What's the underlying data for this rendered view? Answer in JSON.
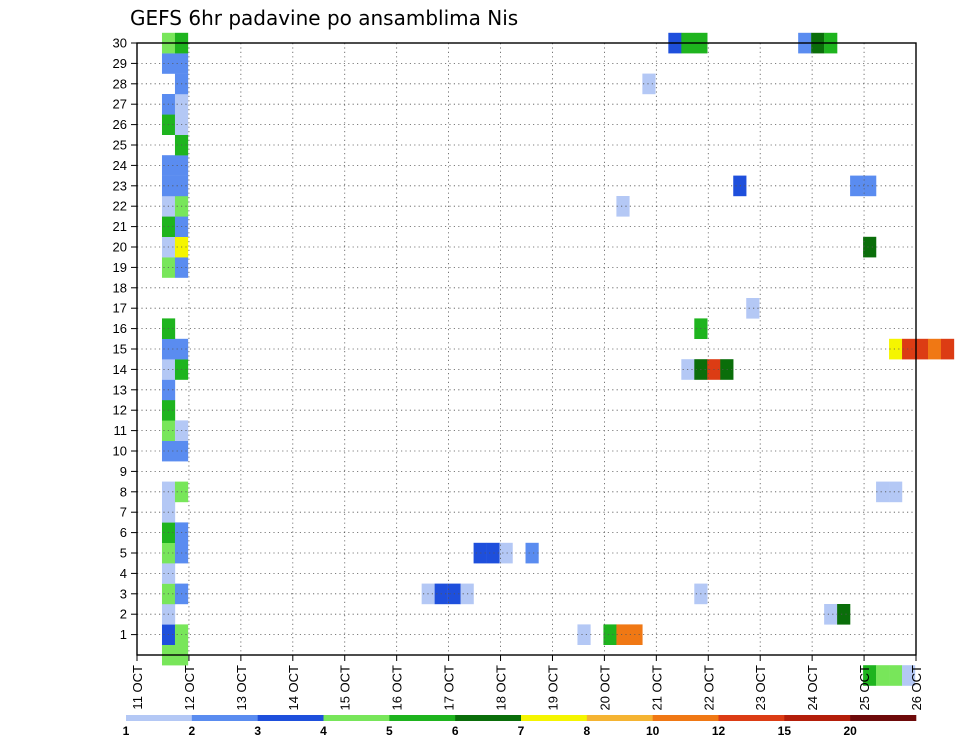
{
  "chart_data": {
    "type": "heatmap",
    "title": "GEFS 6hr padavine po ansamblima Nis",
    "xlabel": "",
    "ylabel": "",
    "x_tick_labels": [
      "11 OCT",
      "12 OCT",
      "13 OCT",
      "14 OCT",
      "15 OCT",
      "16 OCT",
      "17 OCT",
      "18 OCT",
      "19 OCT",
      "20 OCT",
      "21 OCT",
      "22 OCT",
      "23 OCT",
      "24 OCT",
      "25 OCT",
      "26 OCT"
    ],
    "x_range_steps": [
      0,
      60
    ],
    "y_tick_labels": [
      "1",
      "2",
      "3",
      "4",
      "5",
      "6",
      "7",
      "8",
      "9",
      "10",
      "11",
      "12",
      "13",
      "14",
      "15",
      "16",
      "17",
      "18",
      "19",
      "20",
      "21",
      "22",
      "23",
      "24",
      "25",
      "26",
      "27",
      "28",
      "29",
      "30"
    ],
    "y_range": [
      0,
      30
    ],
    "grid": true,
    "legend": {
      "placement": "bottom",
      "levels": [
        "1",
        "2",
        "3",
        "4",
        "5",
        "6",
        "7",
        "8",
        "10",
        "12",
        "15",
        "20"
      ],
      "colors": [
        "#b4c8f5",
        "#5a8cf0",
        "#1e4fdc",
        "#78e65a",
        "#1eb41e",
        "#0a6e0a",
        "#f5f500",
        "#f5b432",
        "#f07814",
        "#dc3c14",
        "#b41e0a",
        "#6e0a0a"
      ]
    },
    "cell_format": "[step, member, class]",
    "cells": [
      [
        1,
        0,
        3
      ],
      [
        2,
        0,
        3
      ],
      [
        1,
        1,
        2
      ],
      [
        2,
        1,
        3
      ],
      [
        1,
        2,
        0
      ],
      [
        1,
        3,
        3
      ],
      [
        2,
        3,
        1
      ],
      [
        1,
        4,
        0
      ],
      [
        1,
        5,
        3
      ],
      [
        2,
        5,
        1
      ],
      [
        1,
        6,
        4
      ],
      [
        2,
        6,
        1
      ],
      [
        1,
        7,
        0
      ],
      [
        1,
        8,
        0
      ],
      [
        2,
        8,
        3
      ],
      [
        1,
        10,
        1
      ],
      [
        2,
        10,
        1
      ],
      [
        1,
        11,
        3
      ],
      [
        2,
        11,
        0
      ],
      [
        1,
        12,
        4
      ],
      [
        1,
        13,
        1
      ],
      [
        1,
        14,
        0
      ],
      [
        2,
        14,
        4
      ],
      [
        1,
        15,
        1
      ],
      [
        2,
        15,
        1
      ],
      [
        1,
        16,
        4
      ],
      [
        1,
        19,
        3
      ],
      [
        2,
        19,
        1
      ],
      [
        1,
        20,
        0
      ],
      [
        2,
        20,
        6
      ],
      [
        1,
        21,
        4
      ],
      [
        2,
        21,
        1
      ],
      [
        1,
        22,
        0
      ],
      [
        2,
        22,
        3
      ],
      [
        1,
        23,
        1
      ],
      [
        2,
        23,
        1
      ],
      [
        1,
        24,
        1
      ],
      [
        2,
        24,
        1
      ],
      [
        2,
        25,
        4
      ],
      [
        1,
        26,
        4
      ],
      [
        2,
        26,
        0
      ],
      [
        1,
        27,
        1
      ],
      [
        2,
        27,
        0
      ],
      [
        2,
        28,
        1
      ],
      [
        1,
        29,
        1
      ],
      [
        2,
        29,
        1
      ],
      [
        1,
        30,
        3
      ],
      [
        2,
        30,
        4
      ],
      [
        21,
        3,
        0
      ],
      [
        22,
        3,
        2
      ],
      [
        23,
        3,
        2
      ],
      [
        24,
        3,
        0
      ],
      [
        25,
        5,
        2
      ],
      [
        26,
        5,
        2
      ],
      [
        27,
        5,
        0
      ],
      [
        29,
        5,
        1
      ],
      [
        33,
        1,
        0
      ],
      [
        35,
        1,
        4
      ],
      [
        36,
        1,
        8
      ],
      [
        37,
        1,
        8
      ],
      [
        36,
        22,
        0
      ],
      [
        38,
        28,
        0
      ],
      [
        40,
        30,
        2
      ],
      [
        41,
        30,
        4
      ],
      [
        42,
        30,
        4
      ],
      [
        41,
        14,
        0
      ],
      [
        42,
        14,
        5
      ],
      [
        43,
        14,
        9
      ],
      [
        44,
        14,
        5
      ],
      [
        42,
        16,
        4
      ],
      [
        42,
        3,
        0
      ],
      [
        45,
        23,
        2
      ],
      [
        46,
        17,
        0
      ],
      [
        50,
        30,
        1
      ],
      [
        51,
        30,
        5
      ],
      [
        52,
        30,
        4
      ],
      [
        52,
        2,
        0
      ],
      [
        53,
        2,
        5
      ],
      [
        54,
        23,
        1
      ],
      [
        55,
        23,
        1
      ],
      [
        55,
        20,
        5
      ],
      [
        57,
        15,
        6
      ],
      [
        58,
        15,
        9
      ],
      [
        59,
        15,
        9
      ],
      [
        60,
        15,
        8
      ],
      [
        61,
        15,
        9
      ],
      [
        56,
        8,
        0
      ],
      [
        57,
        8,
        0
      ],
      [
        55,
        -1,
        4
      ],
      [
        56,
        -1,
        3
      ],
      [
        57,
        -1,
        3
      ],
      [
        58,
        -1,
        0
      ]
    ]
  }
}
